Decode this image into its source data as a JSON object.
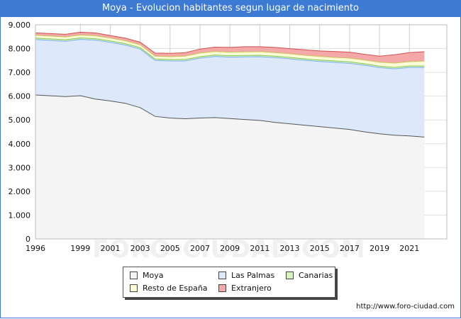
{
  "window_title": "Moya - Evolucion habitantes segun lugar de nacimiento",
  "footer_url": "http://www.foro-ciudad.com",
  "watermark": "FORO-CIUDAD.COM",
  "chart_data": {
    "type": "area",
    "title": "Moya - Evolucion habitantes segun lugar de nacimiento",
    "xlabel": "",
    "ylabel": "",
    "x_ticks": [
      "1996",
      "1999",
      "2001",
      "2003",
      "2005",
      "2007",
      "2009",
      "2011",
      "2013",
      "2015",
      "2017",
      "2019",
      "2021"
    ],
    "y_ticks": [
      "0",
      "1.000",
      "2.000",
      "3.000",
      "4.000",
      "5.000",
      "6.000",
      "7.000",
      "8.000",
      "9.000"
    ],
    "ylim": [
      0,
      9000
    ],
    "xlim": [
      1996,
      2023.5
    ],
    "stacked": true,
    "grid": true,
    "legend_position": "bottom",
    "x": [
      1996,
      1998,
      1999,
      2000,
      2001,
      2002,
      2003,
      2004,
      2005,
      2006,
      2007,
      2008,
      2009,
      2010,
      2011,
      2012,
      2013,
      2014,
      2015,
      2016,
      2017,
      2018,
      2019,
      2020,
      2021,
      2022
    ],
    "series": [
      {
        "name": "Moya",
        "color": "#f4f4f4",
        "line": "#555555",
        "values": [
          6050,
          5980,
          6020,
          5880,
          5800,
          5700,
          5520,
          5150,
          5080,
          5050,
          5080,
          5100,
          5060,
          5020,
          4980,
          4900,
          4840,
          4780,
          4720,
          4660,
          4600,
          4500,
          4420,
          4360,
          4330,
          4280
        ]
      },
      {
        "name": "Las Palmas",
        "color": "#dde9fb",
        "line": "#7eaef2",
        "values": [
          2330,
          2330,
          2370,
          2480,
          2460,
          2450,
          2460,
          2350,
          2400,
          2430,
          2520,
          2570,
          2580,
          2630,
          2680,
          2720,
          2730,
          2730,
          2740,
          2760,
          2780,
          2800,
          2780,
          2790,
          2880,
          2930
        ]
      },
      {
        "name": "Canarias",
        "color": "#d8f2c0",
        "line": "#7ec85a",
        "values": [
          60,
          60,
          60,
          60,
          60,
          60,
          60,
          60,
          60,
          60,
          60,
          60,
          60,
          60,
          60,
          60,
          60,
          60,
          60,
          60,
          60,
          60,
          60,
          60,
          60,
          60
        ]
      },
      {
        "name": "Resto de España",
        "color": "#fbfbd6",
        "line": "#c8c860",
        "values": [
          120,
          120,
          120,
          120,
          120,
          120,
          120,
          120,
          120,
          140,
          150,
          150,
          150,
          150,
          150,
          150,
          150,
          150,
          150,
          150,
          160,
          160,
          170,
          180,
          180,
          200
        ]
      },
      {
        "name": "Extranjero",
        "color": "#f4a8a8",
        "line": "#d05050",
        "values": [
          100,
          110,
          120,
          120,
          110,
          110,
          110,
          130,
          140,
          150,
          170,
          180,
          200,
          220,
          210,
          220,
          220,
          230,
          230,
          250,
          250,
          240,
          250,
          350,
          380,
          400
        ]
      }
    ]
  }
}
